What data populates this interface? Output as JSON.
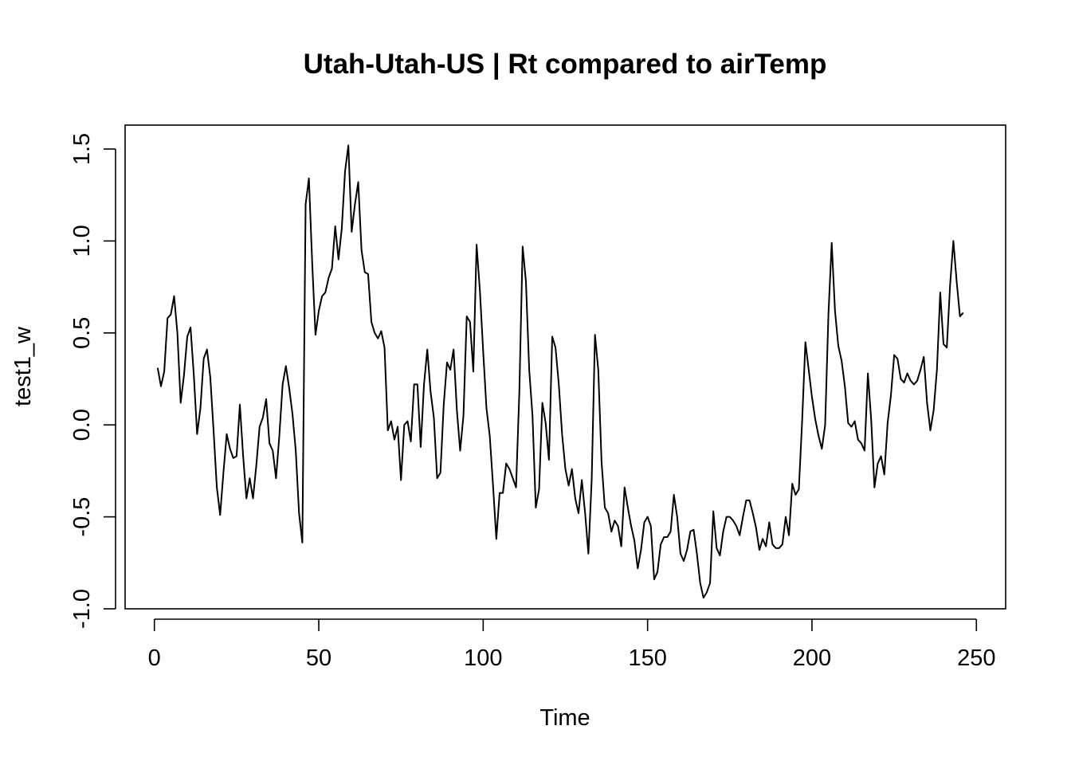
{
  "chart_data": {
    "type": "line",
    "title": "Utah-Utah-US | Rt compared to airTemp",
    "xlabel": "Time",
    "ylabel": "test1_w",
    "xlim": [
      -8.9,
      258.9
    ],
    "ylim": [
      -1.0,
      1.63
    ],
    "xticks": [
      0,
      50,
      100,
      150,
      200,
      250
    ],
    "yticks": [
      -1.0,
      -0.5,
      0.0,
      0.5,
      1.0,
      1.5
    ],
    "xtick_labels": [
      "0",
      "50",
      "100",
      "150",
      "200",
      "250"
    ],
    "ytick_labels": [
      "-1.0",
      "-0.5",
      "0.0",
      "0.5",
      "1.0",
      "1.5"
    ],
    "grid": false,
    "legend": "none",
    "line_color": "#000000",
    "series": [
      {
        "x_start": 1,
        "x_step": 1,
        "values": [
          0.31,
          0.21,
          0.29,
          0.58,
          0.6,
          0.7,
          0.5,
          0.12,
          0.27,
          0.48,
          0.53,
          0.27,
          -0.05,
          0.09,
          0.36,
          0.41,
          0.26,
          -0.03,
          -0.34,
          -0.49,
          -0.26,
          -0.05,
          -0.13,
          -0.18,
          -0.17,
          0.11,
          -0.17,
          -0.4,
          -0.29,
          -0.4,
          -0.22,
          -0.01,
          0.04,
          0.14,
          -0.1,
          -0.14,
          -0.29,
          -0.06,
          0.22,
          0.32,
          0.2,
          0.06,
          -0.14,
          -0.48,
          -0.64,
          1.2,
          1.34,
          0.88,
          0.49,
          0.62,
          0.7,
          0.72,
          0.8,
          0.85,
          1.08,
          0.9,
          1.07,
          1.38,
          1.52,
          1.05,
          1.2,
          1.32,
          0.95,
          0.83,
          0.82,
          0.56,
          0.5,
          0.47,
          0.51,
          0.42,
          -0.03,
          0.02,
          -0.08,
          -0.01,
          -0.3,
          0.0,
          0.02,
          -0.09,
          0.22,
          0.22,
          -0.12,
          0.22,
          0.41,
          0.18,
          0.04,
          -0.29,
          -0.26,
          0.11,
          0.34,
          0.3,
          0.41,
          0.08,
          -0.14,
          0.05,
          0.59,
          0.56,
          0.29,
          0.98,
          0.73,
          0.4,
          0.09,
          -0.06,
          -0.33,
          -0.62,
          -0.37,
          -0.37,
          -0.21,
          -0.24,
          -0.29,
          -0.34,
          0.18,
          0.97,
          0.78,
          0.3,
          0.05,
          -0.45,
          -0.35,
          0.12,
          0.01,
          -0.19,
          0.48,
          0.42,
          0.22,
          -0.05,
          -0.24,
          -0.33,
          -0.24,
          -0.4,
          -0.48,
          -0.3,
          -0.48,
          -0.7,
          -0.3,
          0.49,
          0.3,
          -0.2,
          -0.45,
          -0.48,
          -0.58,
          -0.52,
          -0.55,
          -0.66,
          -0.34,
          -0.45,
          -0.55,
          -0.63,
          -0.78,
          -0.68,
          -0.53,
          -0.5,
          -0.55,
          -0.84,
          -0.8,
          -0.65,
          -0.61,
          -0.61,
          -0.58,
          -0.38,
          -0.5,
          -0.7,
          -0.74,
          -0.68,
          -0.58,
          -0.57,
          -0.7,
          -0.86,
          -0.94,
          -0.91,
          -0.86,
          -0.47,
          -0.67,
          -0.71,
          -0.58,
          -0.5,
          -0.5,
          -0.52,
          -0.55,
          -0.6,
          -0.5,
          -0.41,
          -0.41,
          -0.48,
          -0.56,
          -0.68,
          -0.62,
          -0.66,
          -0.53,
          -0.65,
          -0.67,
          -0.67,
          -0.65,
          -0.5,
          -0.6,
          -0.32,
          -0.38,
          -0.35,
          0.02,
          0.45,
          0.3,
          0.15,
          0.03,
          -0.06,
          -0.13,
          0.0,
          0.6,
          0.99,
          0.62,
          0.43,
          0.35,
          0.21,
          0.01,
          -0.01,
          0.02,
          -0.08,
          -0.1,
          -0.14,
          0.28,
          0.03,
          -0.34,
          -0.21,
          -0.17,
          -0.27,
          0.01,
          0.16,
          0.38,
          0.36,
          0.25,
          0.23,
          0.28,
          0.24,
          0.22,
          0.24,
          0.3,
          0.37,
          0.12,
          -0.03,
          0.08,
          0.3,
          0.72,
          0.44,
          0.42,
          0.76,
          1.0,
          0.78,
          0.59,
          0.61
        ]
      }
    ]
  }
}
